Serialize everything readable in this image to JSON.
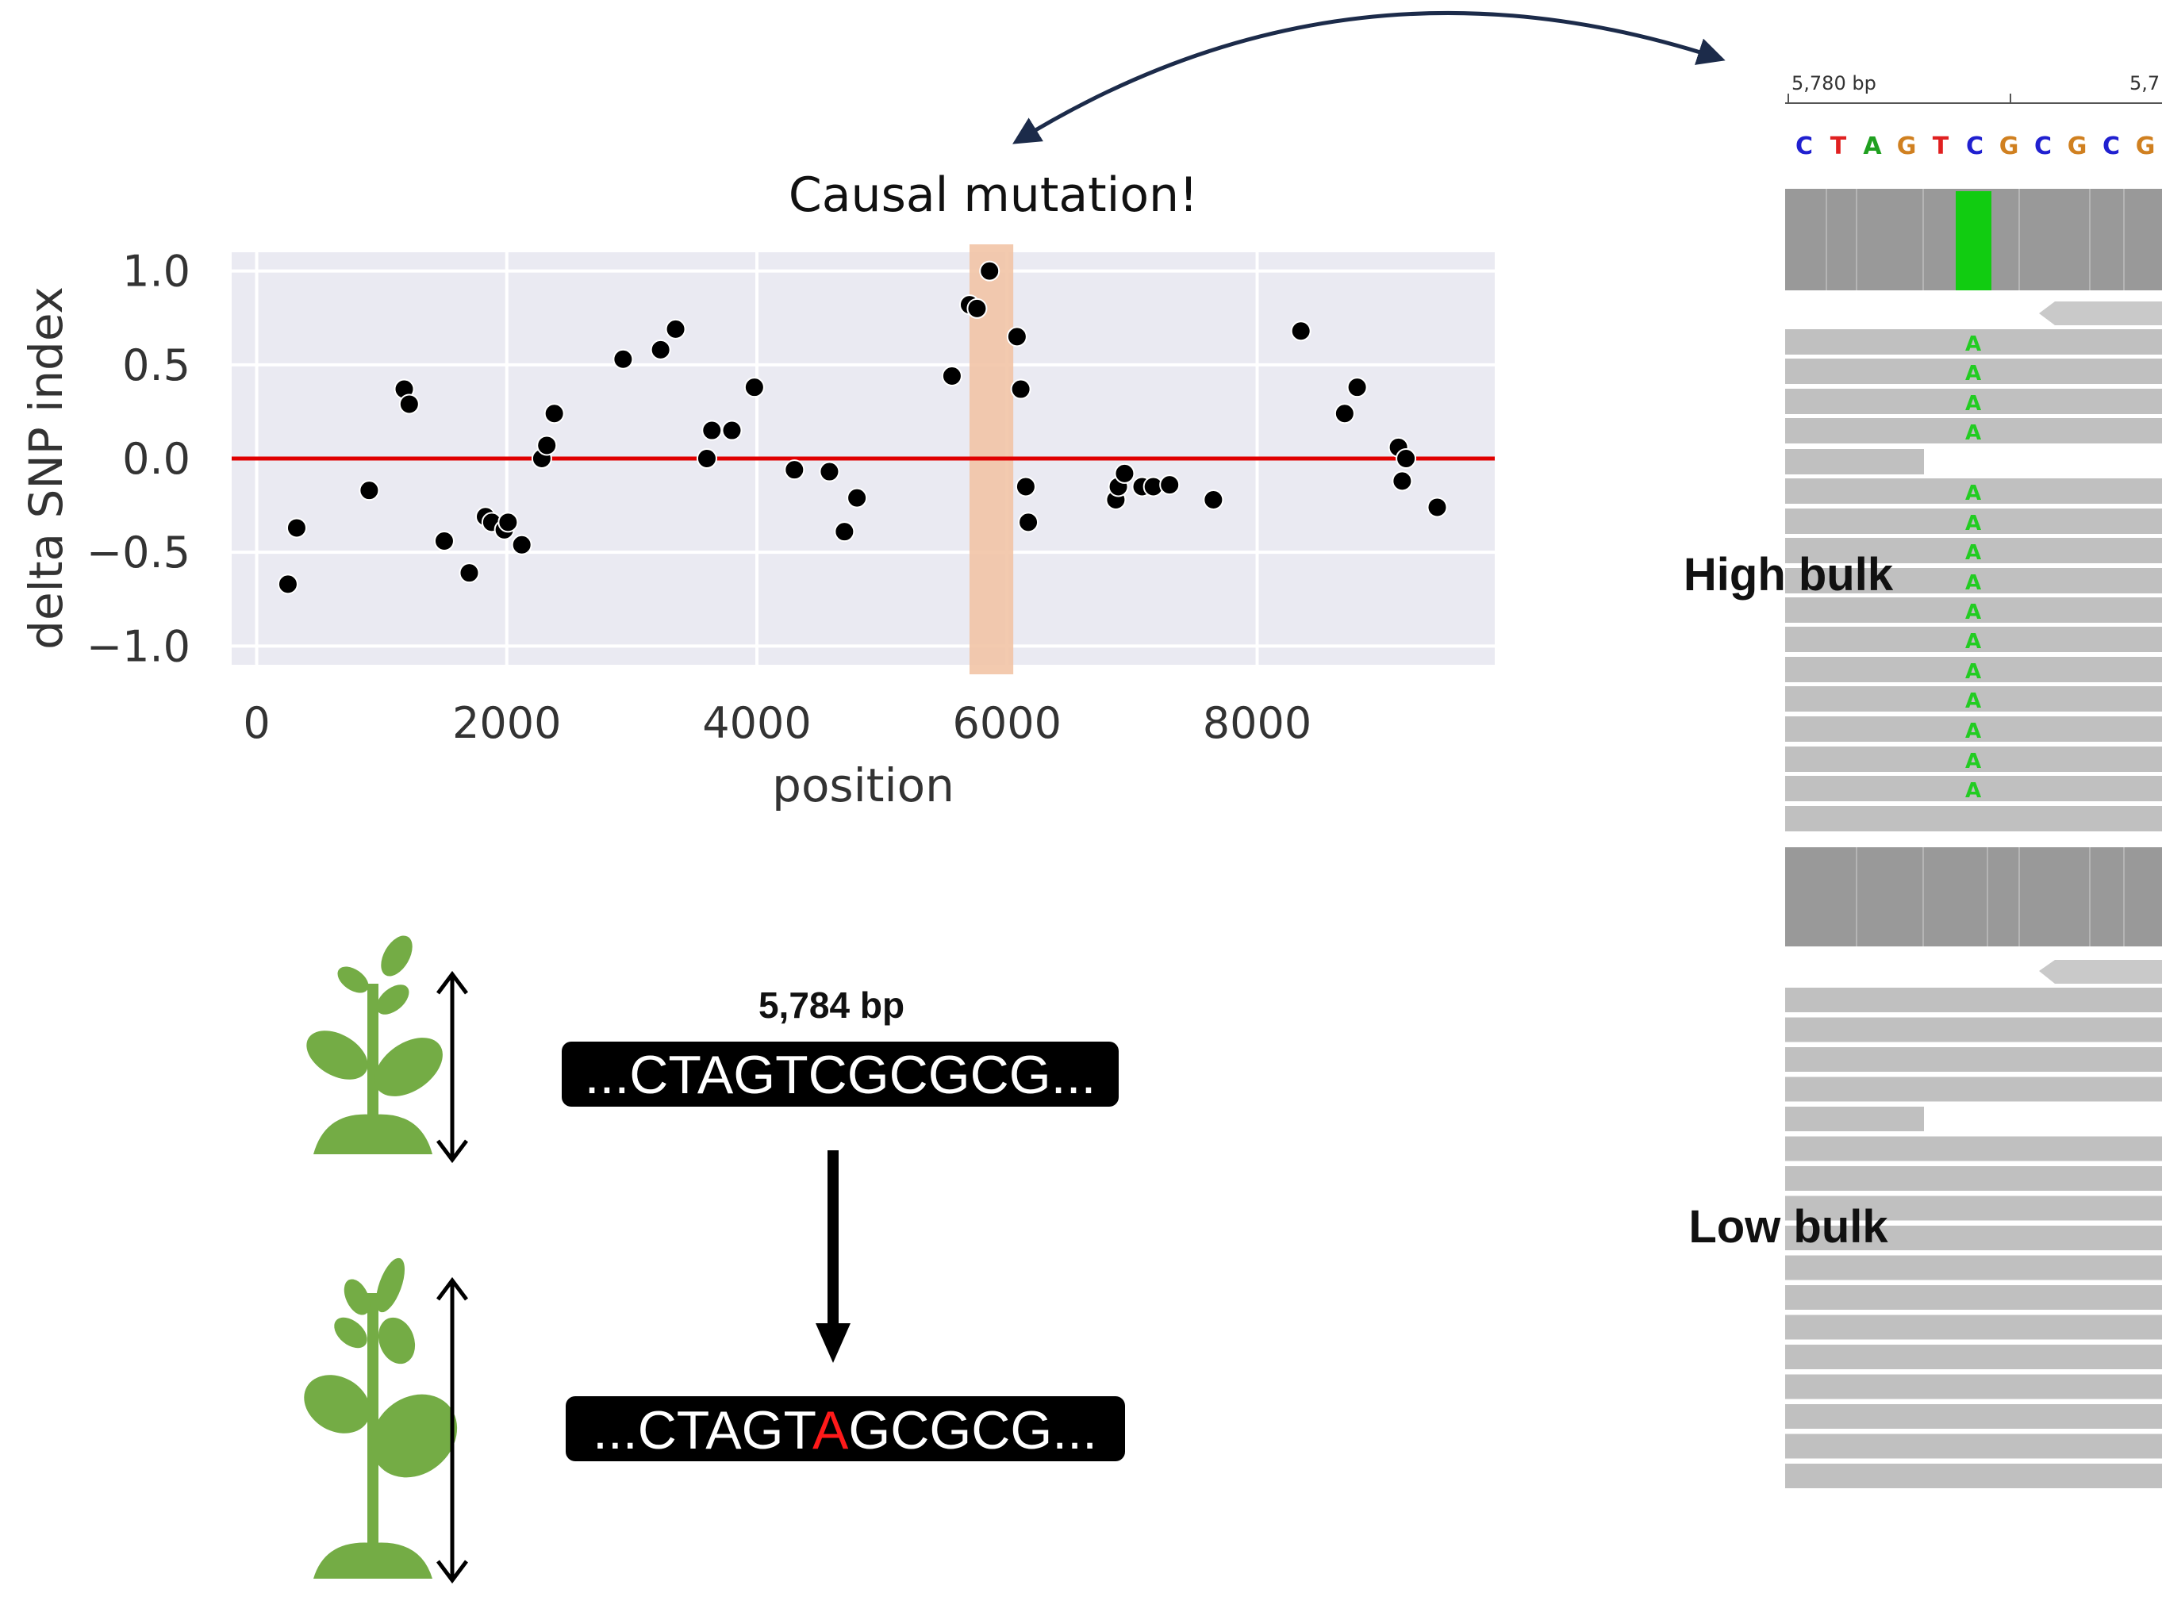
{
  "chart_data": {
    "type": "scatter",
    "title": "",
    "xlabel": "position",
    "ylabel": "delta SNP index",
    "xlim": [
      -200,
      9900
    ],
    "ylim": [
      -1.1,
      1.1
    ],
    "x_ticks": [
      0,
      2000,
      4000,
      6000,
      8000
    ],
    "x_tick_labels": [
      "0",
      "2000",
      "4000",
      "6000",
      "8000"
    ],
    "y_ticks": [
      1.0,
      0.5,
      0.0,
      -0.5,
      -1.0
    ],
    "y_tick_labels": [
      "1.0",
      "0.5",
      "0.0",
      "−0.5",
      "−1.0"
    ],
    "grid": true,
    "background_color": "#eaeaf2",
    "point_color": "#000000",
    "reference_line": {
      "y": 0.0,
      "color": "#e00000"
    },
    "highlight_band": {
      "x_range": [
        5700,
        6050
      ],
      "color": "#f2c4a6"
    },
    "annotation": "Causal mutation!",
    "points": [
      {
        "x": 250,
        "y": -0.67
      },
      {
        "x": 320,
        "y": -0.37
      },
      {
        "x": 900,
        "y": -0.17
      },
      {
        "x": 1180,
        "y": 0.37
      },
      {
        "x": 1220,
        "y": 0.29
      },
      {
        "x": 1500,
        "y": -0.44
      },
      {
        "x": 1700,
        "y": -0.61
      },
      {
        "x": 1830,
        "y": -0.31
      },
      {
        "x": 1880,
        "y": -0.34
      },
      {
        "x": 1980,
        "y": -0.38
      },
      {
        "x": 2010,
        "y": -0.34
      },
      {
        "x": 2120,
        "y": -0.46
      },
      {
        "x": 2280,
        "y": 0.0
      },
      {
        "x": 2320,
        "y": 0.07
      },
      {
        "x": 2380,
        "y": 0.24
      },
      {
        "x": 2930,
        "y": 0.53
      },
      {
        "x": 3230,
        "y": 0.58
      },
      {
        "x": 3350,
        "y": 0.69
      },
      {
        "x": 3600,
        "y": 0.0
      },
      {
        "x": 3640,
        "y": 0.15
      },
      {
        "x": 3800,
        "y": 0.15
      },
      {
        "x": 3980,
        "y": 0.38
      },
      {
        "x": 4300,
        "y": -0.06
      },
      {
        "x": 4580,
        "y": -0.07
      },
      {
        "x": 4700,
        "y": -0.39
      },
      {
        "x": 4800,
        "y": -0.21
      },
      {
        "x": 5560,
        "y": 0.44
      },
      {
        "x": 5700,
        "y": 0.82
      },
      {
        "x": 5760,
        "y": 0.8
      },
      {
        "x": 5860,
        "y": 1.0
      },
      {
        "x": 6080,
        "y": 0.65
      },
      {
        "x": 6110,
        "y": 0.37
      },
      {
        "x": 6150,
        "y": -0.15
      },
      {
        "x": 6170,
        "y": -0.34
      },
      {
        "x": 6870,
        "y": -0.22
      },
      {
        "x": 6890,
        "y": -0.15
      },
      {
        "x": 6940,
        "y": -0.08
      },
      {
        "x": 7080,
        "y": -0.15
      },
      {
        "x": 7170,
        "y": -0.15
      },
      {
        "x": 7300,
        "y": -0.14
      },
      {
        "x": 7650,
        "y": -0.22
      },
      {
        "x": 8350,
        "y": 0.68
      },
      {
        "x": 8700,
        "y": 0.24
      },
      {
        "x": 8800,
        "y": 0.38
      },
      {
        "x": 9130,
        "y": 0.06
      },
      {
        "x": 9160,
        "y": -0.12
      },
      {
        "x": 9190,
        "y": 0.0
      },
      {
        "x": 9440,
        "y": -0.26
      }
    ]
  },
  "sequence": {
    "position_label": "5,784 bp",
    "original_sequence": "...CTAGTCGCGCG...",
    "mutant_prefix": "...CTAGT",
    "mutant_base": "A",
    "mutant_suffix": "GCGCG...",
    "mutant_color": "#ff1a1a"
  },
  "browser": {
    "coordinate_label": "5,780 bp",
    "coordinate_label_cut": "5,7",
    "reference_bases": [
      {
        "base": "C",
        "color": "#2020d0"
      },
      {
        "base": "T",
        "color": "#e02020"
      },
      {
        "base": "A",
        "color": "#20a020"
      },
      {
        "base": "G",
        "color": "#d08020"
      },
      {
        "base": "T",
        "color": "#e02020"
      },
      {
        "base": "C",
        "color": "#2020d0"
      },
      {
        "base": "G",
        "color": "#d08020"
      },
      {
        "base": "C",
        "color": "#2020d0"
      },
      {
        "base": "G",
        "color": "#d08020"
      },
      {
        "base": "C",
        "color": "#2020d0"
      },
      {
        "base": "G",
        "color": "#d08020"
      }
    ],
    "variant_base": "A",
    "variant_color": "#22cc22",
    "high_bulk_label": "High bulk",
    "low_bulk_label": "Low bulk"
  }
}
